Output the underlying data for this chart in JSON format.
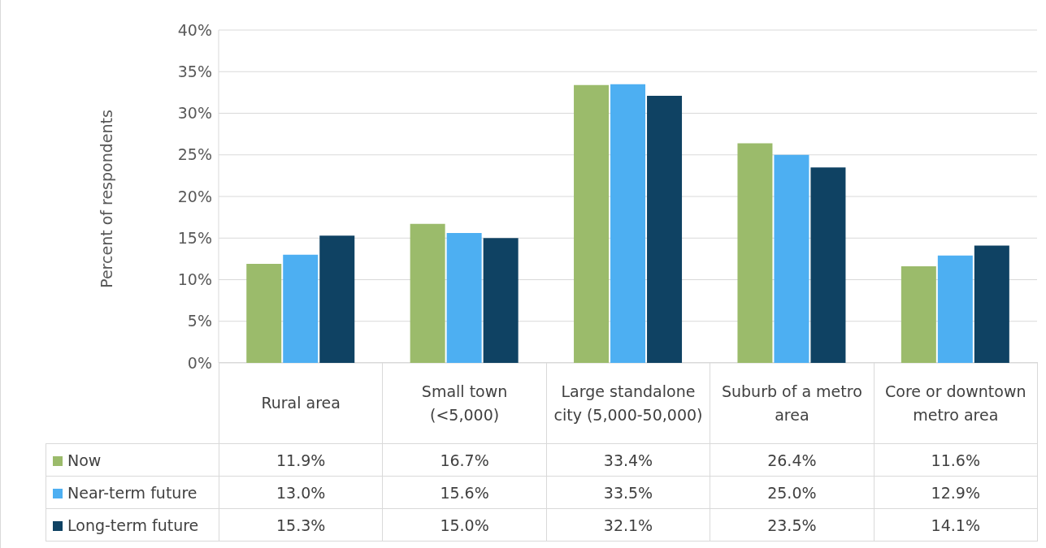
{
  "chart_data": {
    "type": "bar",
    "ylabel": "Percent of respondents",
    "categories": [
      "Rural area",
      "Small town (<5,000)",
      "Large standalone city (5,000-50,000)",
      "Suburb of a metro area",
      "Core or downtown metro area"
    ],
    "series": [
      {
        "name": "Now",
        "color": "#9bbb6b",
        "values": [
          11.9,
          16.7,
          33.4,
          26.4,
          11.6
        ],
        "value_labels": [
          "11.9%",
          "16.7%",
          "33.4%",
          "26.4%",
          "11.6%"
        ]
      },
      {
        "name": "Near-term future",
        "color": "#4daff2",
        "values": [
          13.0,
          15.6,
          33.5,
          25.0,
          12.9
        ],
        "value_labels": [
          "13.0%",
          "15.6%",
          "33.5%",
          "25.0%",
          "12.9%"
        ]
      },
      {
        "name": "Long-term future",
        "color": "#0f4263",
        "values": [
          15.3,
          15.0,
          32.1,
          23.5,
          14.1
        ],
        "value_labels": [
          "15.3%",
          "15.0%",
          "32.1%",
          "23.5%",
          "14.1%"
        ]
      }
    ],
    "ylim": [
      0,
      40
    ],
    "yticks": [
      {
        "value": 0,
        "label": "0%"
      },
      {
        "value": 5,
        "label": "5%"
      },
      {
        "value": 10,
        "label": "10%"
      },
      {
        "value": 15,
        "label": "15%"
      },
      {
        "value": 20,
        "label": "20%"
      },
      {
        "value": 25,
        "label": "25%"
      },
      {
        "value": 30,
        "label": "30%"
      },
      {
        "value": 35,
        "label": "35%"
      },
      {
        "value": 40,
        "label": "40%"
      }
    ],
    "grid": "y",
    "legend": "bottom left"
  }
}
